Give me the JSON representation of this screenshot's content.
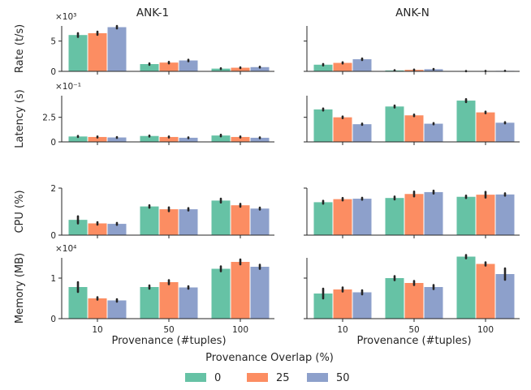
{
  "chart_data": {
    "type": "bar",
    "columns": [
      "ANK-1",
      "ANK-N"
    ],
    "categories": [
      "10",
      "50",
      "100"
    ],
    "xlabel": "Provenance (#tuples)",
    "legend": {
      "title": "Provenance Overlap (%)",
      "placement": "bottom-center",
      "entries": [
        "0",
        "25",
        "50"
      ]
    },
    "colors": [
      "#66c2a5",
      "#fc8d62",
      "#8da0cb"
    ],
    "error_bar_color": "#262626",
    "grid": false,
    "rows": [
      {
        "ylabel": "Rate (t/s)",
        "multiplier": "×10³",
        "ylim": [
          0,
          7.5
        ],
        "yticks": [
          0,
          5
        ],
        "yticklabels": [
          "0",
          "5"
        ],
        "panels": [
          {
            "title": "ANK-1",
            "series": [
              {
                "name": "0",
                "values": [
                  6.0,
                  1.2,
                  0.45
                ],
                "err": [
                  0.3,
                  0.12,
                  0.06
                ]
              },
              {
                "name": "25",
                "values": [
                  6.3,
                  1.45,
                  0.6
                ],
                "err": [
                  0.25,
                  0.12,
                  0.06
                ]
              },
              {
                "name": "50",
                "values": [
                  7.3,
                  1.8,
                  0.7
                ],
                "err": [
                  0.2,
                  0.12,
                  0.06
                ]
              }
            ]
          },
          {
            "title": "ANK-N",
            "series": [
              {
                "name": "0",
                "values": [
                  1.1,
                  0.15,
                  0.04
                ],
                "err": [
                  0.12,
                  0.04,
                  0.02
                ]
              },
              {
                "name": "25",
                "values": [
                  1.4,
                  0.25,
                  0.06
                ],
                "err": [
                  0.1,
                  0.04,
                  0.02
                ]
              },
              {
                "name": "50",
                "values": [
                  2.0,
                  0.35,
                  0.08
                ],
                "err": [
                  0.12,
                  0.05,
                  0.02
                ]
              }
            ]
          }
        ]
      },
      {
        "ylabel": "Latency (s)",
        "multiplier": "×10⁻¹",
        "ylim": [
          0,
          4.7
        ],
        "yticks": [
          0,
          2.5
        ],
        "yticklabels": [
          "0",
          "2.5"
        ],
        "panels": [
          {
            "series": [
              {
                "name": "0",
                "values": [
                  0.55,
                  0.6,
                  0.65
                ],
                "err": [
                  0.05,
                  0.05,
                  0.08
                ]
              },
              {
                "name": "25",
                "values": [
                  0.5,
                  0.5,
                  0.5
                ],
                "err": [
                  0.05,
                  0.05,
                  0.05
                ]
              },
              {
                "name": "50",
                "values": [
                  0.45,
                  0.42,
                  0.42
                ],
                "err": [
                  0.04,
                  0.04,
                  0.04
                ]
              }
            ]
          },
          {
            "series": [
              {
                "name": "0",
                "values": [
                  3.3,
                  3.6,
                  4.2
                ],
                "err": [
                  0.1,
                  0.1,
                  0.15
                ]
              },
              {
                "name": "25",
                "values": [
                  2.5,
                  2.7,
                  3.0
                ],
                "err": [
                  0.08,
                  0.08,
                  0.08
                ]
              },
              {
                "name": "50",
                "values": [
                  1.8,
                  1.85,
                  1.95
                ],
                "err": [
                  0.06,
                  0.06,
                  0.06
                ]
              }
            ]
          }
        ]
      },
      {
        "ylabel": "CPU (%)",
        "multiplier": "",
        "ylim": [
          0,
          2.0
        ],
        "yticks": [
          0,
          2
        ],
        "yticklabels": [
          "0",
          "2"
        ],
        "panels": [
          {
            "series": [
              {
                "name": "0",
                "values": [
                  0.65,
                  1.22,
                  1.47
                ],
                "err": [
                  0.15,
                  0.05,
                  0.08
                ]
              },
              {
                "name": "25",
                "values": [
                  0.5,
                  1.1,
                  1.27
                ],
                "err": [
                  0.05,
                  0.08,
                  0.06
                ]
              },
              {
                "name": "50",
                "values": [
                  0.48,
                  1.1,
                  1.13
                ],
                "err": [
                  0.04,
                  0.05,
                  0.04
                ]
              }
            ]
          },
          {
            "series": [
              {
                "name": "0",
                "values": [
                  1.4,
                  1.58,
                  1.63
                ],
                "err": [
                  0.06,
                  0.06,
                  0.05
                ]
              },
              {
                "name": "25",
                "values": [
                  1.53,
                  1.75,
                  1.72
                ],
                "err": [
                  0.05,
                  0.1,
                  0.12
                ]
              },
              {
                "name": "50",
                "values": [
                  1.55,
                  1.83,
                  1.73
                ],
                "err": [
                  0.04,
                  0.06,
                  0.05
                ]
              }
            ]
          }
        ]
      },
      {
        "ylabel": "Memory (MB)",
        "multiplier": "×10⁴",
        "ylim": [
          0,
          1.5
        ],
        "yticks": [
          0,
          1
        ],
        "yticklabels": [
          "0",
          "1"
        ],
        "panels": [
          {
            "series": [
              {
                "name": "0",
                "values": [
                  0.78,
                  0.78,
                  1.23
                ],
                "err": [
                  0.12,
                  0.04,
                  0.06
                ]
              },
              {
                "name": "25",
                "values": [
                  0.5,
                  0.9,
                  1.4
                ],
                "err": [
                  0.03,
                  0.05,
                  0.06
                ]
              },
              {
                "name": "50",
                "values": [
                  0.45,
                  0.77,
                  1.28
                ],
                "err": [
                  0.03,
                  0.03,
                  0.05
                ]
              }
            ]
          },
          {
            "series": [
              {
                "name": "0",
                "values": [
                  0.62,
                  1.0,
                  1.53
                ],
                "err": [
                  0.12,
                  0.05,
                  0.04
                ]
              },
              {
                "name": "25",
                "values": [
                  0.72,
                  0.88,
                  1.35
                ],
                "err": [
                  0.05,
                  0.05,
                  0.04
                ]
              },
              {
                "name": "50",
                "values": [
                  0.65,
                  0.78,
                  1.1
                ],
                "err": [
                  0.05,
                  0.05,
                  0.14
                ]
              }
            ]
          }
        ]
      }
    ]
  }
}
